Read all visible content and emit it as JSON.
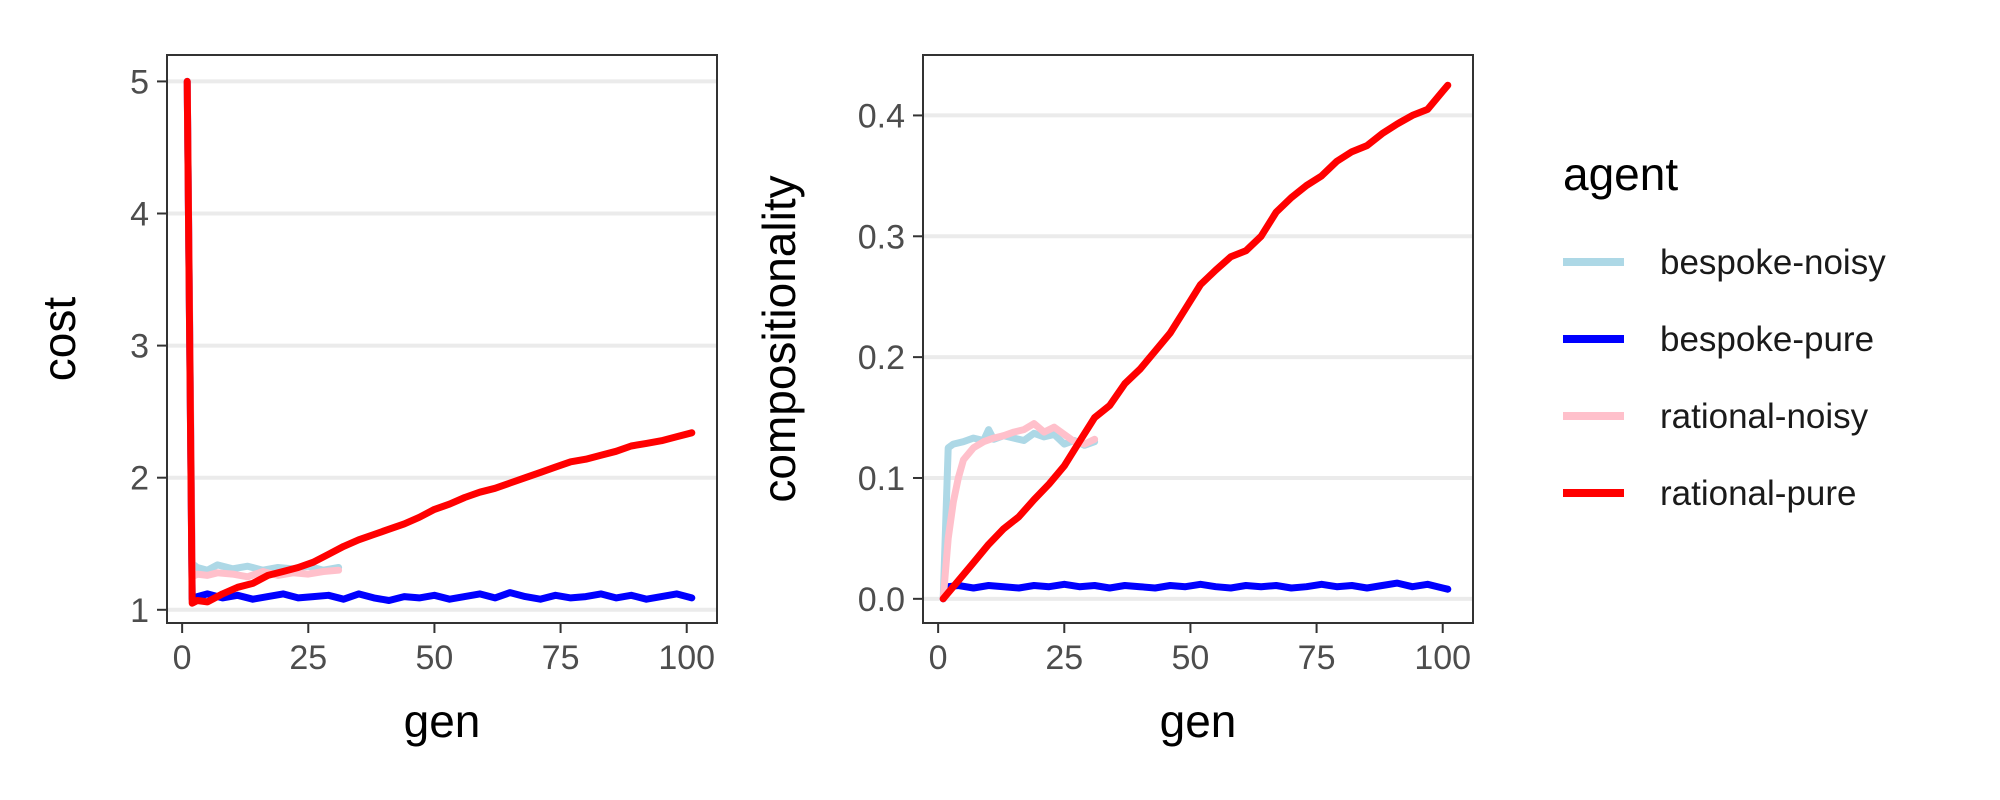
{
  "chart_data": [
    {
      "type": "line",
      "xlabel": "gen",
      "ylabel": "cost",
      "xlim": [
        -3,
        106
      ],
      "ylim": [
        0.9,
        5.2
      ],
      "xticks": [
        0,
        25,
        50,
        75,
        100
      ],
      "xtick_labels": [
        "0",
        "25",
        "50",
        "75",
        "100"
      ],
      "yticks": [
        1,
        2,
        3,
        4,
        5
      ],
      "ytick_labels": [
        "1",
        "2",
        "3",
        "4",
        "5"
      ],
      "grid": "horizontal",
      "series": [
        {
          "name": "bespoke-noisy",
          "color": "#add8e6",
          "x": [
            1,
            2,
            3,
            5,
            7,
            10,
            13,
            16,
            19,
            22,
            25,
            28,
            31
          ],
          "y": [
            5.0,
            1.35,
            1.32,
            1.3,
            1.34,
            1.31,
            1.33,
            1.3,
            1.32,
            1.31,
            1.33,
            1.3,
            1.32
          ]
        },
        {
          "name": "bespoke-pure",
          "color": "#0000ff",
          "x": [
            1,
            2,
            3,
            5,
            8,
            11,
            14,
            17,
            20,
            23,
            26,
            29,
            32,
            35,
            38,
            41,
            44,
            47,
            50,
            53,
            56,
            59,
            62,
            65,
            68,
            71,
            74,
            77,
            80,
            83,
            86,
            89,
            92,
            95,
            98,
            101
          ],
          "y": [
            5.0,
            1.08,
            1.1,
            1.12,
            1.09,
            1.11,
            1.08,
            1.1,
            1.12,
            1.09,
            1.1,
            1.11,
            1.08,
            1.12,
            1.09,
            1.07,
            1.1,
            1.09,
            1.11,
            1.08,
            1.1,
            1.12,
            1.09,
            1.13,
            1.1,
            1.08,
            1.11,
            1.09,
            1.1,
            1.12,
            1.09,
            1.11,
            1.08,
            1.1,
            1.12,
            1.09
          ]
        },
        {
          "name": "rational-noisy",
          "color": "#ffc0cb",
          "x": [
            1,
            2,
            3,
            5,
            7,
            10,
            13,
            16,
            19,
            22,
            25,
            28,
            31
          ],
          "y": [
            5.0,
            1.25,
            1.27,
            1.26,
            1.28,
            1.27,
            1.25,
            1.29,
            1.26,
            1.28,
            1.27,
            1.29,
            1.3
          ]
        },
        {
          "name": "rational-pure",
          "color": "#ff0000",
          "x": [
            1,
            2,
            3,
            5,
            8,
            11,
            14,
            17,
            20,
            23,
            26,
            29,
            32,
            35,
            38,
            41,
            44,
            47,
            50,
            53,
            56,
            59,
            62,
            65,
            68,
            71,
            74,
            77,
            80,
            83,
            86,
            89,
            92,
            95,
            98,
            101
          ],
          "y": [
            5.0,
            1.05,
            1.07,
            1.06,
            1.12,
            1.17,
            1.2,
            1.26,
            1.29,
            1.32,
            1.36,
            1.42,
            1.48,
            1.53,
            1.57,
            1.61,
            1.65,
            1.7,
            1.76,
            1.8,
            1.85,
            1.89,
            1.92,
            1.96,
            2.0,
            2.04,
            2.08,
            2.12,
            2.14,
            2.17,
            2.2,
            2.24,
            2.26,
            2.28,
            2.31,
            2.34
          ]
        }
      ]
    },
    {
      "type": "line",
      "xlabel": "gen",
      "ylabel": "compositionality",
      "xlim": [
        -3,
        106
      ],
      "ylim": [
        -0.02,
        0.45
      ],
      "xticks": [
        0,
        25,
        50,
        75,
        100
      ],
      "xtick_labels": [
        "0",
        "25",
        "50",
        "75",
        "100"
      ],
      "yticks": [
        0.0,
        0.1,
        0.2,
        0.3,
        0.4
      ],
      "ytick_labels": [
        "0.0",
        "0.1",
        "0.2",
        "0.3",
        "0.4"
      ],
      "grid": "horizontal",
      "series": [
        {
          "name": "bespoke-noisy",
          "color": "#add8e6",
          "x": [
            1,
            2,
            3,
            5,
            7,
            9,
            10,
            11,
            13,
            15,
            17,
            19,
            21,
            23,
            25,
            27,
            29,
            31
          ],
          "y": [
            0.0,
            0.125,
            0.128,
            0.13,
            0.133,
            0.131,
            0.14,
            0.132,
            0.135,
            0.133,
            0.131,
            0.137,
            0.134,
            0.136,
            0.128,
            0.131,
            0.127,
            0.13
          ]
        },
        {
          "name": "bespoke-pure",
          "color": "#0000ff",
          "x": [
            1,
            2,
            4,
            7,
            10,
            13,
            16,
            19,
            22,
            25,
            28,
            31,
            34,
            37,
            40,
            43,
            46,
            49,
            52,
            55,
            58,
            61,
            64,
            67,
            70,
            73,
            76,
            79,
            82,
            85,
            88,
            91,
            94,
            97,
            100,
            101
          ],
          "y": [
            0.0,
            0.01,
            0.011,
            0.009,
            0.011,
            0.01,
            0.009,
            0.011,
            0.01,
            0.012,
            0.01,
            0.011,
            0.009,
            0.011,
            0.01,
            0.009,
            0.011,
            0.01,
            0.012,
            0.01,
            0.009,
            0.011,
            0.01,
            0.011,
            0.009,
            0.01,
            0.012,
            0.01,
            0.011,
            0.009,
            0.011,
            0.013,
            0.01,
            0.012,
            0.009,
            0.008
          ]
        },
        {
          "name": "rational-noisy",
          "color": "#ffc0cb",
          "x": [
            1,
            2,
            3,
            4,
            5,
            7,
            9,
            11,
            13,
            15,
            17,
            19,
            21,
            23,
            25,
            27,
            29,
            31
          ],
          "y": [
            0.0,
            0.05,
            0.08,
            0.1,
            0.115,
            0.125,
            0.13,
            0.133,
            0.135,
            0.138,
            0.14,
            0.145,
            0.138,
            0.142,
            0.136,
            0.13,
            0.128,
            0.132
          ]
        },
        {
          "name": "rational-pure",
          "color": "#ff0000",
          "x": [
            1,
            2,
            4,
            7,
            10,
            13,
            16,
            19,
            22,
            25,
            28,
            31,
            34,
            37,
            40,
            43,
            46,
            49,
            52,
            55,
            58,
            61,
            64,
            67,
            70,
            73,
            76,
            79,
            82,
            85,
            88,
            91,
            94,
            97,
            100,
            101
          ],
          "y": [
            0.0,
            0.005,
            0.015,
            0.03,
            0.045,
            0.058,
            0.068,
            0.082,
            0.095,
            0.11,
            0.13,
            0.15,
            0.16,
            0.178,
            0.19,
            0.205,
            0.22,
            0.24,
            0.26,
            0.272,
            0.283,
            0.288,
            0.3,
            0.32,
            0.332,
            0.342,
            0.35,
            0.362,
            0.37,
            0.375,
            0.385,
            0.393,
            0.4,
            0.405,
            0.42,
            0.425
          ]
        }
      ]
    }
  ],
  "legend": {
    "title": "agent",
    "position": "right",
    "items": [
      {
        "label": "bespoke-noisy",
        "color": "#add8e6"
      },
      {
        "label": "bespoke-pure",
        "color": "#0000ff"
      },
      {
        "label": "rational-noisy",
        "color": "#ffc0cb"
      },
      {
        "label": "rational-pure",
        "color": "#ff0000"
      }
    ]
  }
}
